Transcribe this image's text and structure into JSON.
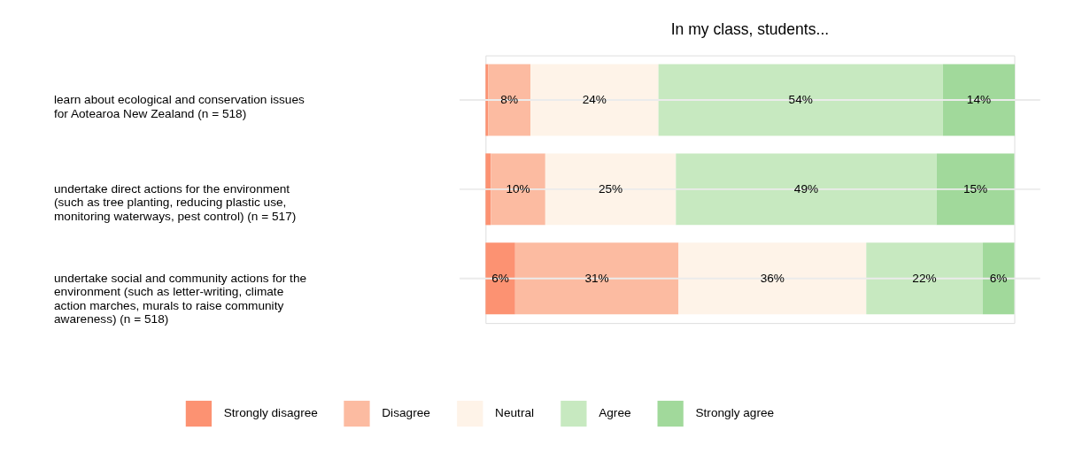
{
  "chart_data": {
    "type": "bar",
    "orientation": "horizontal",
    "stacked": true,
    "title": "In my class, students...",
    "categories": [
      "learn about ecological and conservation issues for Aotearoa New Zealand (n = 518)",
      "undertake direct actions for the environment (such as tree planting, reducing plastic use, monitoring waterways, pest control) (n = 517)",
      "undertake social and community actions for the environment (such as letter-writing, climate action marches, murals to raise community awareness) (n = 518)"
    ],
    "series": [
      {
        "name": "Strongly disagree",
        "color": "#fc9272",
        "values": [
          0.5,
          1,
          5.6
        ],
        "value_labels": [
          null,
          null,
          "6%"
        ]
      },
      {
        "name": "Disagree",
        "color": "#fcbba1",
        "values": [
          8,
          10.3,
          30.9
        ],
        "value_labels": [
          "8%",
          "10%",
          "31%"
        ]
      },
      {
        "name": "Neutral",
        "color": "#fef3e8",
        "values": [
          24.2,
          24.7,
          35.5
        ],
        "value_labels": [
          "24%",
          "25%",
          "36%"
        ]
      },
      {
        "name": "Agree",
        "color": "#c7e9c0",
        "values": [
          53.8,
          49.3,
          22
        ],
        "value_labels": [
          "54%",
          "49%",
          "22%"
        ]
      },
      {
        "name": "Strongly agree",
        "color": "#a1d99b",
        "values": [
          13.6,
          14.7,
          6
        ],
        "value_labels": [
          "14%",
          "15%",
          "6%"
        ]
      }
    ],
    "xlim": [
      0,
      100
    ],
    "tick_labels": "y",
    "grid": "y",
    "legend": "bottom"
  }
}
